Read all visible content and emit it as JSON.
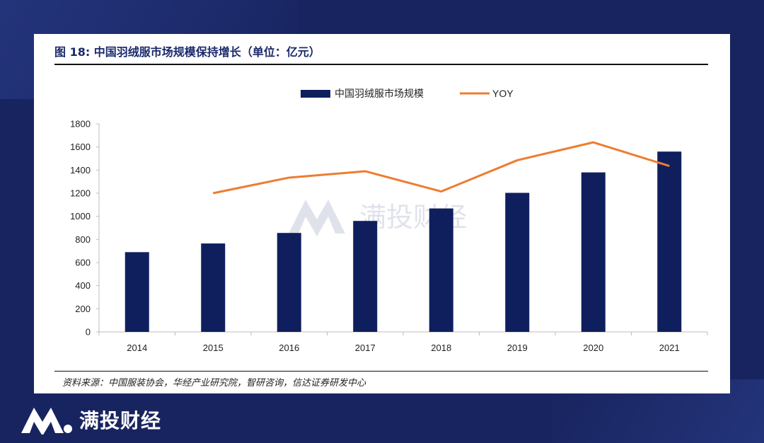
{
  "header": {
    "title": "图 18: 中国羽绒服市场规模保持增长（单位：亿元）"
  },
  "source": {
    "text": "资料来源：中国服装协会，华经产业研究院，智研咨询，信达证券研发中心"
  },
  "watermark": {
    "text": "满投财经"
  },
  "footer": {
    "brand": "满投财经"
  },
  "colors": {
    "bar": "#0f1f5e",
    "line": "#ed7d31",
    "background": "#18245f"
  },
  "chart_data": {
    "type": "bar",
    "title": "图 18: 中国羽绒服市场规模保持增长（单位：亿元）",
    "categories": [
      "2014",
      "2015",
      "2016",
      "2017",
      "2018",
      "2019",
      "2020",
      "2021"
    ],
    "series": [
      {
        "name": "中国羽绒服市场规模",
        "kind": "bar",
        "axis": "left",
        "values": [
          690,
          765,
          856,
          960,
          1068,
          1203,
          1380,
          1560
        ]
      },
      {
        "name": "YOY",
        "kind": "line",
        "axis": "secondary-unlabeled",
        "values": [
          null,
          1200,
          1335,
          1390,
          1215,
          1485,
          1640,
          1435
        ]
      }
    ],
    "y_ticks": [
      "0",
      "200",
      "400",
      "600",
      "800",
      "1000",
      "1200",
      "1400",
      "1600",
      "1800"
    ],
    "ylim": [
      0,
      1800
    ],
    "xlabel": "",
    "ylabel": "",
    "legend_position": "top-center",
    "grid": false
  }
}
